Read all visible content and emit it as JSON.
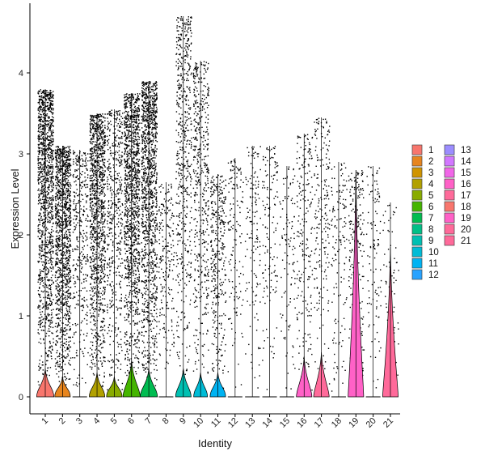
{
  "chart_data": {
    "type": "violin",
    "xlabel": "Identity",
    "ylabel": "Expression Level",
    "ylim": [
      -0.25,
      4.75
    ],
    "yticks": [
      0,
      1,
      2,
      3,
      4
    ],
    "grid": false,
    "legend_position": "right",
    "categories": [
      "1",
      "2",
      "3",
      "4",
      "5",
      "6",
      "7",
      "8",
      "9",
      "10",
      "11",
      "12",
      "13",
      "14",
      "15",
      "16",
      "17",
      "18",
      "19",
      "20",
      "21"
    ],
    "colors": [
      "#F8766D",
      "#E7851E",
      "#D09400",
      "#B2A100",
      "#89AC00",
      "#45B500",
      "#00BC51",
      "#00C087",
      "#00C0B2",
      "#00BCD6",
      "#00B3F2",
      "#29A3FF",
      "#9C8DFF",
      "#D277FF",
      "#F166E8",
      "#FF61C7",
      "#FF6A9A",
      "#F8766D",
      "#FF61C7",
      "#FF6A9A",
      "#FF6A9A"
    ],
    "series": [
      {
        "name": "1",
        "max": 3.8,
        "density": 0.95,
        "violin_height": 0.35,
        "violin_width": 0.5
      },
      {
        "name": "2",
        "max": 3.1,
        "density": 0.9,
        "violin_height": 0.25,
        "violin_width": 0.45
      },
      {
        "name": "3",
        "max": 3.05,
        "density": 0.25,
        "violin_height": 0.0,
        "violin_width": 0.0
      },
      {
        "name": "4",
        "max": 3.5,
        "density": 0.85,
        "violin_height": 0.3,
        "violin_width": 0.45
      },
      {
        "name": "5",
        "max": 3.55,
        "density": 0.35,
        "violin_height": 0.25,
        "violin_width": 0.45
      },
      {
        "name": "6",
        "max": 3.75,
        "density": 0.9,
        "violin_height": 0.45,
        "violin_width": 0.5
      },
      {
        "name": "7",
        "max": 3.9,
        "density": 0.9,
        "violin_height": 0.35,
        "violin_width": 0.5
      },
      {
        "name": "8",
        "max": 2.65,
        "density": 0.15,
        "violin_height": 0.0,
        "violin_width": 0.0
      },
      {
        "name": "9",
        "max": 4.7,
        "density": 0.4,
        "violin_height": 0.35,
        "violin_width": 0.45
      },
      {
        "name": "10",
        "max": 4.15,
        "density": 0.35,
        "violin_height": 0.3,
        "violin_width": 0.4
      },
      {
        "name": "11",
        "max": 2.75,
        "density": 0.25,
        "violin_height": 0.3,
        "violin_width": 0.45
      },
      {
        "name": "12",
        "max": 2.95,
        "density": 0.1,
        "violin_height": 0.0,
        "violin_width": 0.0
      },
      {
        "name": "13",
        "max": 3.1,
        "density": 0.1,
        "violin_height": 0.0,
        "violin_width": 0.0
      },
      {
        "name": "14",
        "max": 3.1,
        "density": 0.1,
        "violin_height": 0.0,
        "violin_width": 0.0
      },
      {
        "name": "15",
        "max": 2.85,
        "density": 0.08,
        "violin_height": 0.0,
        "violin_width": 0.0
      },
      {
        "name": "16",
        "max": 3.25,
        "density": 0.15,
        "violin_height": 0.5,
        "violin_width": 0.45
      },
      {
        "name": "17",
        "max": 3.45,
        "density": 0.15,
        "violin_height": 0.55,
        "violin_width": 0.45
      },
      {
        "name": "18",
        "max": 2.9,
        "density": 0.1,
        "violin_height": 0.0,
        "violin_width": 0.0
      },
      {
        "name": "19",
        "max": 2.8,
        "density": 0.15,
        "violin_height": 2.8,
        "violin_width": 0.45
      },
      {
        "name": "20",
        "max": 2.85,
        "density": 0.08,
        "violin_height": 0.0,
        "violin_width": 0.0
      },
      {
        "name": "21",
        "max": 2.4,
        "density": 0.05,
        "violin_height": 1.85,
        "violin_width": 0.45
      }
    ]
  }
}
